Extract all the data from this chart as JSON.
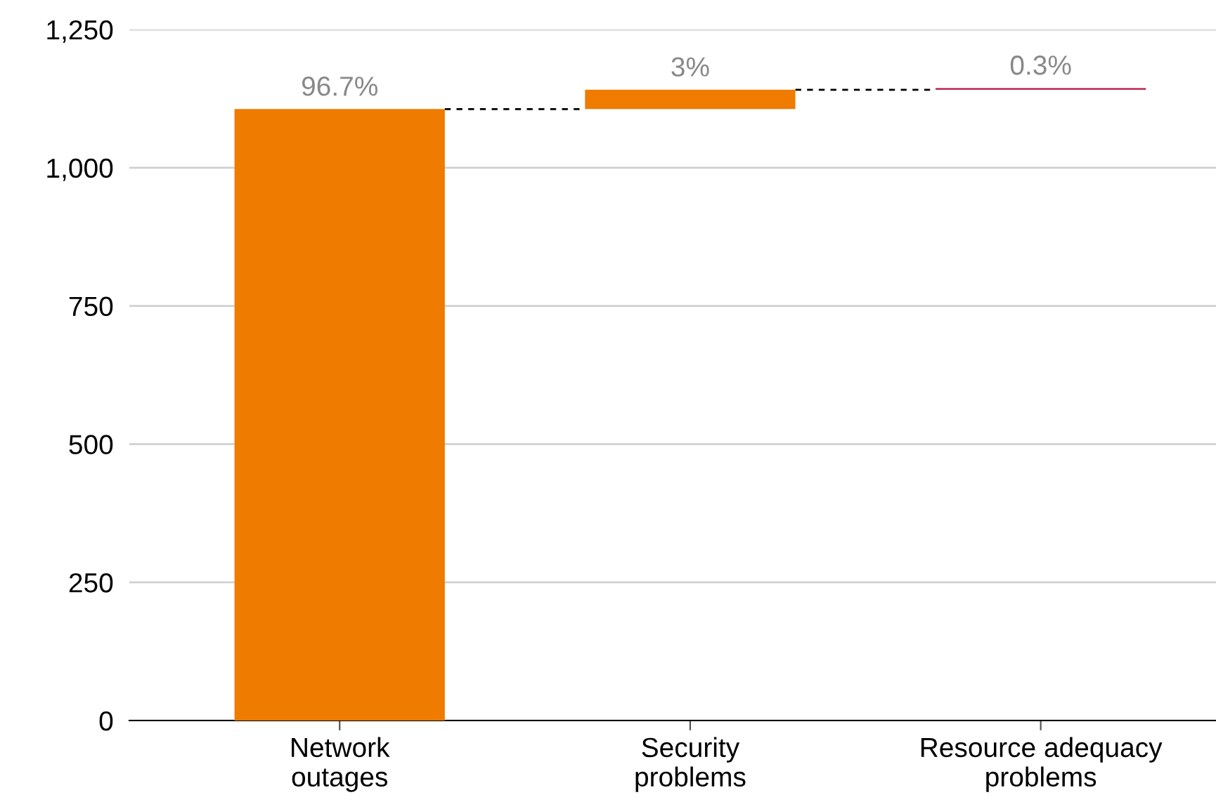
{
  "chart_data": {
    "type": "bar",
    "categories": [
      "Network\noutages",
      "Security\nproblems",
      "Resource adequacy\nproblems"
    ],
    "values": [
      1106,
      35,
      3
    ],
    "base": [
      0,
      1106,
      1141
    ],
    "colors": [
      "#ef7b00",
      "#ef7b00",
      "#b5103c"
    ],
    "annotations": [
      {
        "text": "96.7%",
        "x": "Network\noutages",
        "y": 1106
      },
      {
        "text": "3%",
        "x": "Security\nproblems",
        "y": 1141
      },
      {
        "text": "0.3%",
        "x": "Resource adequacy\nproblems",
        "y": 1144
      }
    ],
    "ylim": [
      0,
      1250
    ],
    "yticks": [
      {
        "value": 0,
        "label": "0"
      },
      {
        "value": 250,
        "label": "250"
      },
      {
        "value": 500,
        "label": "500"
      },
      {
        "value": 750,
        "label": "750"
      },
      {
        "value": 1000,
        "label": "1,000"
      },
      {
        "value": 1250,
        "label": "1,250"
      }
    ],
    "grid": "y"
  }
}
